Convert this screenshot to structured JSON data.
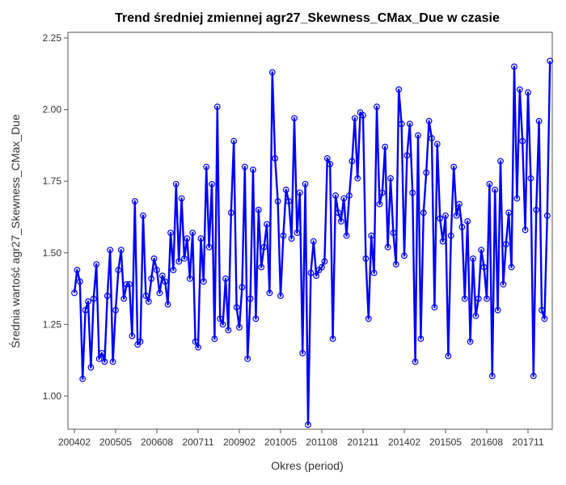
{
  "chart_data": {
    "type": "line",
    "title": "Trend średniej zmiennej agr27_Skewness_CMax_Due w czasie",
    "xlabel": "Okres (period)",
    "ylabel": "Średnia wartość agr27_Skewness_CMax_Due",
    "ylim": [
      0.9,
      2.25
    ],
    "y_ticks": [
      "1.00",
      "1.25",
      "1.50",
      "1.75",
      "2.00",
      "2.25"
    ],
    "x_tick_labels": [
      "200402",
      "200505",
      "200608",
      "200711",
      "200902",
      "201005",
      "201108",
      "201211",
      "201402",
      "201505",
      "201608",
      "201711"
    ],
    "grid": false,
    "legend": "none",
    "colors": {
      "line": "#0000ff",
      "marker": "#0000ff",
      "frame": "#555555"
    },
    "series": [
      {
        "start_period": "200402",
        "values": [
          1.36,
          1.44,
          1.4,
          1.06,
          1.3,
          1.33,
          1.1,
          1.34,
          1.46,
          1.13,
          1.15,
          1.12,
          1.35,
          1.51,
          1.12,
          1.3,
          1.44,
          1.51,
          1.34,
          1.39,
          1.39,
          1.21,
          1.68,
          1.18,
          1.19,
          1.63,
          1.35,
          1.33,
          1.41,
          1.48,
          1.44,
          1.36,
          1.42,
          1.4,
          1.32,
          1.57,
          1.44,
          1.74,
          1.47,
          1.69,
          1.48,
          1.55,
          1.41,
          1.57,
          1.19,
          1.17,
          1.55,
          1.4,
          1.8,
          1.52,
          1.74,
          1.2,
          2.01,
          1.27,
          1.25,
          1.41,
          1.23,
          1.64,
          1.89,
          1.31,
          1.24,
          1.38,
          1.8,
          1.13,
          1.34,
          1.79,
          1.27,
          1.65,
          1.45,
          1.52,
          1.6,
          1.36,
          2.13,
          1.83,
          1.68,
          1.35,
          1.56,
          1.72,
          1.68,
          1.55,
          1.97,
          1.57,
          1.71,
          1.15,
          1.74,
          0.9,
          1.43,
          1.54,
          1.42,
          1.44,
          1.45,
          1.47,
          1.83,
          1.81,
          1.2,
          1.7,
          1.64,
          1.61,
          1.69,
          1.56,
          1.7,
          1.82,
          1.97,
          1.76,
          1.99,
          1.98,
          1.48,
          1.27,
          1.56,
          1.43,
          2.01,
          1.67,
          1.71,
          1.87,
          1.52,
          1.76,
          1.57,
          1.46,
          2.07,
          1.95,
          1.49,
          1.84,
          1.95,
          1.71,
          1.12,
          1.91,
          1.2,
          1.64,
          1.78,
          1.96,
          1.9,
          1.31,
          1.88,
          1.62,
          1.54,
          1.63,
          1.14,
          1.56,
          1.8,
          1.63,
          1.67,
          1.59,
          1.34,
          1.61,
          1.19,
          1.48,
          1.28,
          1.34,
          1.51,
          1.45,
          1.34,
          1.74,
          1.07,
          1.72,
          1.3,
          1.82,
          1.39,
          1.53,
          1.64,
          1.45,
          2.15,
          1.69,
          2.07,
          1.89,
          1.58,
          2.06,
          1.76,
          1.07,
          1.65,
          1.96,
          1.3,
          1.27,
          1.63,
          2.17
        ]
      }
    ]
  }
}
